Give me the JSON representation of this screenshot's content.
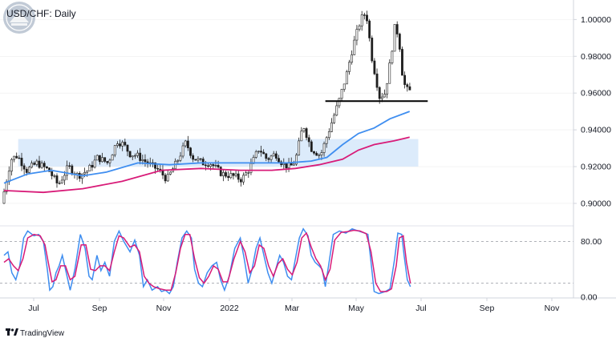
{
  "header": {
    "title": "USD/CHF: Daily"
  },
  "branding": {
    "name": "TradingView",
    "logo_icon": "tradingview-logo-icon",
    "watermark_icon": "watermark-seal-icon"
  },
  "colors": {
    "candle": "#1e1e1e",
    "ma_fast": "#3f8ef0",
    "ma_slow": "#d81b78",
    "zone_fill": "#dcebfb",
    "support_line": "#000000",
    "stoch_k": "#3f8ef0",
    "stoch_d": "#d81b78",
    "grid": "#eeeeee",
    "axis_border": "#d1d4dc"
  },
  "chart_data": [
    {
      "type": "candlestick",
      "title": "USD/CHF: Daily",
      "ylim": [
        0.893,
        1.008
      ],
      "y_ticks": [
        "1.00000",
        "0.98000",
        "0.96000",
        "0.94000",
        "0.92000",
        "0.90000"
      ],
      "x_ticks": [
        "Jul",
        "Sep",
        "Nov",
        "2022",
        "Mar",
        "May",
        "Jul",
        "Sep",
        "Nov"
      ],
      "grid": false,
      "price_path": [
        [
          0,
          0.9
        ],
        [
          6,
          0.912
        ],
        [
          12,
          0.924
        ],
        [
          20,
          0.926
        ],
        [
          32,
          0.918
        ],
        [
          45,
          0.922
        ],
        [
          60,
          0.918
        ],
        [
          72,
          0.91
        ],
        [
          85,
          0.92
        ],
        [
          97,
          0.915
        ],
        [
          110,
          0.918
        ],
        [
          122,
          0.925
        ],
        [
          135,
          0.922
        ],
        [
          147,
          0.934
        ],
        [
          155,
          0.932
        ],
        [
          163,
          0.927
        ],
        [
          172,
          0.926
        ],
        [
          185,
          0.922
        ],
        [
          200,
          0.918
        ],
        [
          210,
          0.913
        ],
        [
          222,
          0.922
        ],
        [
          234,
          0.933
        ],
        [
          243,
          0.925
        ],
        [
          255,
          0.922
        ],
        [
          265,
          0.922
        ],
        [
          280,
          0.916
        ],
        [
          293,
          0.915
        ],
        [
          305,
          0.913
        ],
        [
          315,
          0.919
        ],
        [
          327,
          0.93
        ],
        [
          337,
          0.924
        ],
        [
          348,
          0.927
        ],
        [
          358,
          0.921
        ],
        [
          367,
          0.92
        ],
        [
          373,
          0.923
        ],
        [
          383,
          0.943
        ],
        [
          393,
          0.93
        ],
        [
          405,
          0.926
        ],
        [
          416,
          0.94
        ],
        [
          428,
          0.955
        ],
        [
          438,
          0.97
        ],
        [
          446,
          0.985
        ],
        [
          456,
          1.0
        ],
        [
          463,
          1.004
        ],
        [
          470,
          0.98
        ],
        [
          480,
          0.958
        ],
        [
          487,
          0.96
        ],
        [
          494,
          0.978
        ],
        [
          500,
          0.998
        ],
        [
          505,
          0.988
        ],
        [
          510,
          0.966
        ],
        [
          516,
          0.961
        ]
      ],
      "series": [
        {
          "name": "",
          "kind": "moving-average-fast",
          "points": [
            [
              0,
              0.911
            ],
            [
              30,
              0.916
            ],
            [
              60,
              0.918
            ],
            [
              100,
              0.915
            ],
            [
              130,
              0.917
            ],
            [
              170,
              0.922
            ],
            [
              210,
              0.921
            ],
            [
              250,
              0.922
            ],
            [
              290,
              0.922
            ],
            [
              330,
              0.922
            ],
            [
              360,
              0.922
            ],
            [
              390,
              0.923
            ],
            [
              410,
              0.925
            ],
            [
              430,
              0.932
            ],
            [
              450,
              0.938
            ],
            [
              470,
              0.941
            ],
            [
              490,
              0.946
            ],
            [
              515,
              0.95
            ]
          ]
        },
        {
          "name": "",
          "kind": "moving-average-slow",
          "points": [
            [
              0,
              0.907
            ],
            [
              50,
              0.906
            ],
            [
              100,
              0.908
            ],
            [
              150,
              0.912
            ],
            [
              200,
              0.918
            ],
            [
              250,
              0.919
            ],
            [
              300,
              0.918
            ],
            [
              340,
              0.918
            ],
            [
              370,
              0.919
            ],
            [
              400,
              0.921
            ],
            [
              430,
              0.924
            ],
            [
              450,
              0.929
            ],
            [
              470,
              0.932
            ],
            [
              495,
              0.934
            ],
            [
              515,
              0.936
            ]
          ]
        }
      ],
      "annotations": {
        "zone": {
          "x_from": 18,
          "x_to": 526,
          "y_from": 0.92,
          "y_to": 0.935
        },
        "horizontal_line": {
          "x_from": 408,
          "x_to": 538,
          "y": 0.9556
        }
      }
    },
    {
      "type": "line",
      "title": "",
      "ylim": [
        0,
        100
      ],
      "y_ticks": [
        "80.00",
        "0.00"
      ],
      "reference_lines": [
        80,
        20
      ],
      "series": [
        {
          "name": "",
          "kind": "stochastic-k",
          "points": [
            [
              0,
              60
            ],
            [
              5,
              65
            ],
            [
              10,
              35
            ],
            [
              15,
              25
            ],
            [
              20,
              45
            ],
            [
              25,
              85
            ],
            [
              30,
              95
            ],
            [
              38,
              88
            ],
            [
              44,
              90
            ],
            [
              50,
              80
            ],
            [
              55,
              40
            ],
            [
              58,
              10
            ],
            [
              62,
              15
            ],
            [
              66,
              35
            ],
            [
              70,
              45
            ],
            [
              74,
              60
            ],
            [
              80,
              30
            ],
            [
              84,
              10
            ],
            [
              90,
              40
            ],
            [
              97,
              90
            ],
            [
              103,
              70
            ],
            [
              108,
              30
            ],
            [
              112,
              25
            ],
            [
              118,
              60
            ],
            [
              123,
              38
            ],
            [
              128,
              50
            ],
            [
              134,
              30
            ],
            [
              140,
              80
            ],
            [
              146,
              95
            ],
            [
              152,
              80
            ],
            [
              160,
              65
            ],
            [
              166,
              82
            ],
            [
              172,
              60
            ],
            [
              177,
              15
            ],
            [
              182,
              25
            ],
            [
              188,
              10
            ],
            [
              195,
              15
            ],
            [
              200,
              8
            ],
            [
              205,
              10
            ],
            [
              210,
              5
            ],
            [
              215,
              15
            ],
            [
              220,
              50
            ],
            [
              226,
              85
            ],
            [
              232,
              95
            ],
            [
              238,
              85
            ],
            [
              242,
              40
            ],
            [
              247,
              20
            ],
            [
              252,
              15
            ],
            [
              258,
              35
            ],
            [
              264,
              45
            ],
            [
              270,
              50
            ],
            [
              275,
              25
            ],
            [
              280,
              10
            ],
            [
              286,
              30
            ],
            [
              293,
              70
            ],
            [
              300,
              85
            ],
            [
              305,
              55
            ],
            [
              310,
              20
            ],
            [
              315,
              40
            ],
            [
              320,
              70
            ],
            [
              325,
              85
            ],
            [
              330,
              60
            ],
            [
              335,
              35
            ],
            [
              340,
              20
            ],
            [
              345,
              40
            ],
            [
              350,
              60
            ],
            [
              355,
              50
            ],
            [
              360,
              30
            ],
            [
              365,
              25
            ],
            [
              370,
              55
            ],
            [
              375,
              85
            ],
            [
              380,
              98
            ],
            [
              386,
              88
            ],
            [
              390,
              60
            ],
            [
              395,
              50
            ],
            [
              400,
              45
            ],
            [
              404,
              40
            ],
            [
              408,
              15
            ],
            [
              412,
              45
            ],
            [
              418,
              90
            ],
            [
              426,
              95
            ],
            [
              434,
              92
            ],
            [
              442,
              98
            ],
            [
              450,
              95
            ],
            [
              458,
              92
            ],
            [
              462,
              90
            ],
            [
              466,
              50
            ],
            [
              470,
              8
            ],
            [
              476,
              5
            ],
            [
              484,
              8
            ],
            [
              490,
              12
            ],
            [
              496,
              55
            ],
            [
              500,
              92
            ],
            [
              505,
              90
            ],
            [
              508,
              60
            ],
            [
              512,
              25
            ],
            [
              516,
              15
            ]
          ]
        },
        {
          "name": "",
          "kind": "stochastic-d",
          "points": [
            [
              0,
              50
            ],
            [
              6,
              55
            ],
            [
              12,
              45
            ],
            [
              18,
              38
            ],
            [
              24,
              55
            ],
            [
              30,
              85
            ],
            [
              38,
              90
            ],
            [
              46,
              88
            ],
            [
              52,
              75
            ],
            [
              57,
              45
            ],
            [
              61,
              22
            ],
            [
              66,
              25
            ],
            [
              72,
              45
            ],
            [
              78,
              45
            ],
            [
              84,
              25
            ],
            [
              90,
              30
            ],
            [
              98,
              75
            ],
            [
              104,
              75
            ],
            [
              110,
              40
            ],
            [
              116,
              38
            ],
            [
              122,
              45
            ],
            [
              128,
              45
            ],
            [
              134,
              38
            ],
            [
              140,
              65
            ],
            [
              146,
              88
            ],
            [
              152,
              85
            ],
            [
              160,
              72
            ],
            [
              166,
              75
            ],
            [
              172,
              65
            ],
            [
              178,
              30
            ],
            [
              184,
              20
            ],
            [
              190,
              15
            ],
            [
              198,
              12
            ],
            [
              206,
              10
            ],
            [
              212,
              10
            ],
            [
              218,
              35
            ],
            [
              224,
              70
            ],
            [
              230,
              90
            ],
            [
              236,
              90
            ],
            [
              242,
              55
            ],
            [
              248,
              28
            ],
            [
              254,
              20
            ],
            [
              260,
              30
            ],
            [
              266,
              45
            ],
            [
              272,
              40
            ],
            [
              278,
              22
            ],
            [
              284,
              22
            ],
            [
              292,
              55
            ],
            [
              300,
              80
            ],
            [
              306,
              65
            ],
            [
              312,
              35
            ],
            [
              318,
              45
            ],
            [
              324,
              75
            ],
            [
              330,
              70
            ],
            [
              336,
              45
            ],
            [
              342,
              30
            ],
            [
              348,
              48
            ],
            [
              354,
              55
            ],
            [
              360,
              40
            ],
            [
              366,
              32
            ],
            [
              372,
              50
            ],
            [
              378,
              85
            ],
            [
              384,
              92
            ],
            [
              390,
              72
            ],
            [
              396,
              55
            ],
            [
              402,
              45
            ],
            [
              408,
              25
            ],
            [
              414,
              40
            ],
            [
              420,
              82
            ],
            [
              428,
              93
            ],
            [
              436,
              94
            ],
            [
              444,
              96
            ],
            [
              452,
              95
            ],
            [
              460,
              91
            ],
            [
              466,
              65
            ],
            [
              472,
              20
            ],
            [
              478,
              8
            ],
            [
              486,
              8
            ],
            [
              492,
              12
            ],
            [
              498,
              45
            ],
            [
              502,
              85
            ],
            [
              507,
              88
            ],
            [
              511,
              50
            ],
            [
              516,
              20
            ]
          ]
        }
      ]
    }
  ]
}
